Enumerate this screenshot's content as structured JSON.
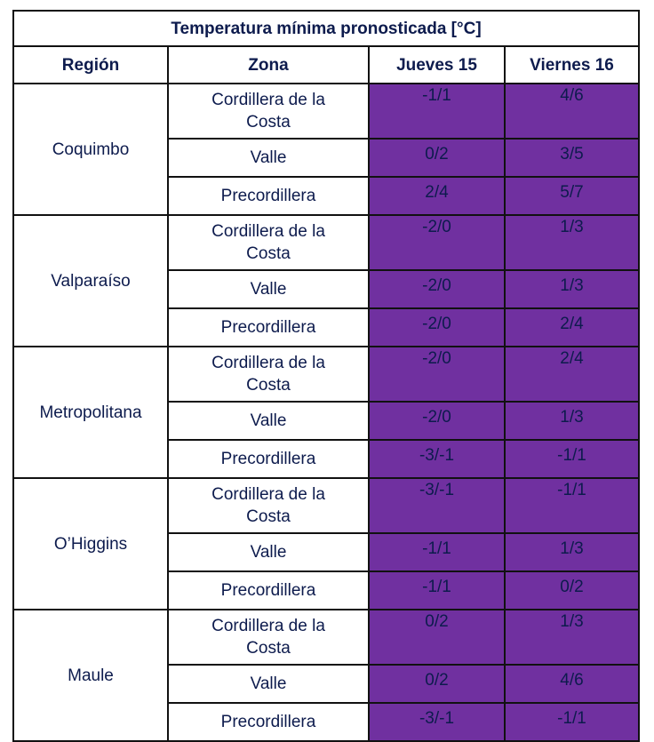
{
  "table": {
    "title": "Temperatura mínima pronosticada [°C]",
    "headers": [
      "Región",
      "Zona",
      "Jueves 15",
      "Viernes 16"
    ],
    "regions": [
      {
        "name": "Coquimbo",
        "rows": [
          {
            "zone": "Cordillera de la Costa",
            "thu": "-1/1",
            "fri": "4/6"
          },
          {
            "zone": "Valle",
            "thu": "0/2",
            "fri": "3/5"
          },
          {
            "zone": "Precordillera",
            "thu": "2/4",
            "fri": "5/7"
          }
        ]
      },
      {
        "name": "Valparaíso",
        "rows": [
          {
            "zone": "Cordillera de la Costa",
            "thu": "-2/0",
            "fri": "1/3"
          },
          {
            "zone": "Valle",
            "thu": "-2/0",
            "fri": "1/3"
          },
          {
            "zone": "Precordillera",
            "thu": "-2/0",
            "fri": "2/4"
          }
        ]
      },
      {
        "name": "Metropolitana",
        "rows": [
          {
            "zone": "Cordillera de la Costa",
            "thu": "-2/0",
            "fri": "2/4"
          },
          {
            "zone": "Valle",
            "thu": "-2/0",
            "fri": "1/3"
          },
          {
            "zone": "Precordillera",
            "thu": "-3/-1",
            "fri": "-1/1"
          }
        ]
      },
      {
        "name": "O’Higgins",
        "rows": [
          {
            "zone": "Cordillera de la Costa",
            "thu": "-3/-1",
            "fri": "-1/1"
          },
          {
            "zone": "Valle",
            "thu": "-1/1",
            "fri": "1/3"
          },
          {
            "zone": "Precordillera",
            "thu": "-1/1",
            "fri": "0/2"
          }
        ]
      },
      {
        "name": "Maule",
        "rows": [
          {
            "zone": "Cordillera de la Costa",
            "thu": "0/2",
            "fri": "1/3"
          },
          {
            "zone": "Valle",
            "thu": "0/2",
            "fri": "4/6"
          },
          {
            "zone": "Precordillera",
            "thu": "-3/-1",
            "fri": "-1/1"
          }
        ]
      }
    ],
    "colors": {
      "value_cell_bg": "#7030a0",
      "value_text": "#ffffff",
      "label_text": "#0d1b4d",
      "border": "#111111"
    }
  }
}
